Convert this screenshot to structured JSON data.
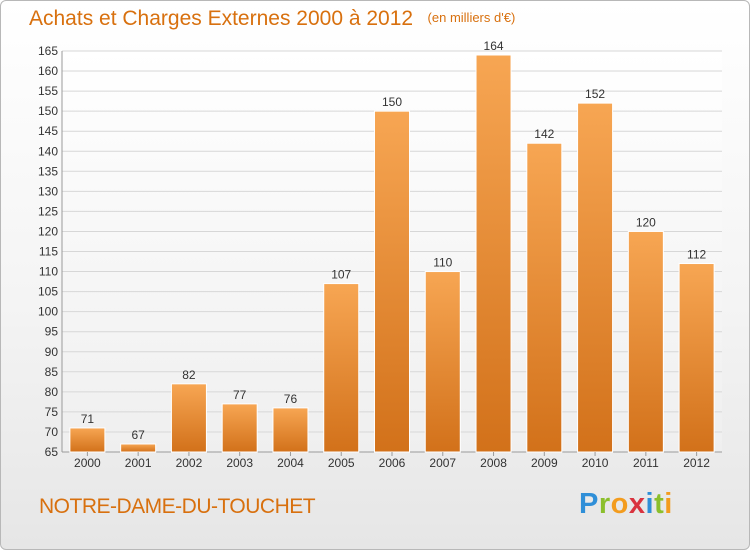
{
  "header": {
    "title": "Achats et Charges Externes 2000 à 2012",
    "unit": "(en milliers d'€)"
  },
  "footer": {
    "commune": "NOTRE-DAME-DU-TOUCHET",
    "logo": {
      "letters": [
        "P",
        "r",
        "o",
        "x",
        "i",
        "t",
        "i"
      ],
      "colors": [
        "#2f8fd8",
        "#8bbf2c",
        "#f39c1e",
        "#d9333f",
        "#2f8fd8",
        "#8bbf2c",
        "#f39c1e"
      ]
    }
  },
  "colors": {
    "bar_light": "#f7a653",
    "bar_dark": "#d2711a",
    "accent": "#d8700e",
    "grid": "#d7d7d7",
    "axis_text": "#333333"
  },
  "chart_data": {
    "type": "bar",
    "categories": [
      "2000",
      "2001",
      "2002",
      "2003",
      "2004",
      "2005",
      "2006",
      "2007",
      "2008",
      "2009",
      "2010",
      "2011",
      "2012"
    ],
    "values": [
      71,
      67,
      82,
      77,
      76,
      107,
      150,
      110,
      164,
      142,
      152,
      120,
      112
    ],
    "title": "Achats et Charges Externes 2000 à 2012",
    "ylim": [
      65,
      165
    ],
    "yticks": [
      65,
      70,
      75,
      80,
      85,
      90,
      95,
      100,
      105,
      110,
      115,
      120,
      125,
      130,
      135,
      140,
      145,
      150,
      155,
      160,
      165
    ],
    "grid": true,
    "data_labels": true
  }
}
